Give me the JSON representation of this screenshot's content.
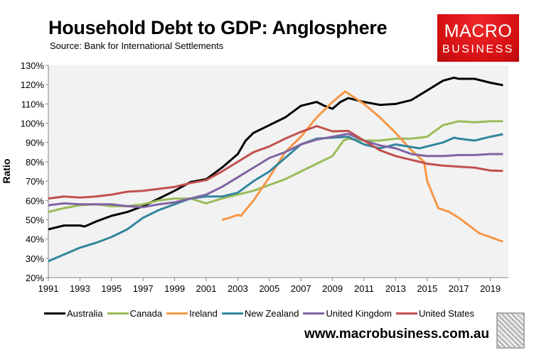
{
  "chart_data": {
    "type": "line",
    "title": "Household Debt to GDP: Anglosphere",
    "subtitle": "Source: Bank for International Settlements",
    "xlabel": "",
    "ylabel": "Ratio",
    "xlim": [
      1991,
      2020.1
    ],
    "ylim": [
      20,
      130
    ],
    "x_ticks": [
      "1991",
      "1993",
      "1995",
      "1997",
      "1999",
      "2001",
      "2003",
      "2005",
      "2007",
      "2009",
      "2011",
      "2013",
      "2015",
      "2017",
      "2019"
    ],
    "y_ticks": [
      "20%",
      "30%",
      "40%",
      "50%",
      "60%",
      "70%",
      "80%",
      "90%",
      "100%",
      "110%",
      "120%",
      "130%"
    ],
    "grid": false,
    "legend_position": "bottom",
    "series": [
      {
        "name": "Australia",
        "color": "#000000",
        "x": [
          1991,
          1992,
          1993,
          1993.3,
          1994,
          1995,
          1996,
          1997,
          1998,
          1999,
          2000,
          2001,
          2002,
          2003,
          2003.5,
          2004,
          2005,
          2006,
          2007,
          2008,
          2008.5,
          2009,
          2009.5,
          2010,
          2011,
          2012,
          2013,
          2014,
          2015,
          2016,
          2016.7,
          2017,
          2018,
          2019,
          2019.8
        ],
        "y": [
          45,
          47,
          47,
          46.5,
          49,
          52,
          54,
          57,
          61,
          65,
          69.5,
          71,
          77,
          84,
          91,
          95,
          99,
          103,
          109,
          111,
          109,
          107.5,
          111,
          113,
          111,
          109.5,
          110,
          112,
          117,
          122,
          123.6,
          123,
          123,
          121,
          119.7
        ]
      },
      {
        "name": "Canada",
        "color": "#9bbb59",
        "x": [
          1991,
          1992,
          1993,
          1994,
          1995,
          1996,
          1997,
          1998,
          1999,
          2000,
          2001,
          2002,
          2003,
          2004,
          2005,
          2006,
          2007,
          2008,
          2009,
          2009.7,
          2010,
          2011,
          2012,
          2013,
          2014,
          2015,
          2016,
          2017,
          2018,
          2019,
          2019.8
        ],
        "y": [
          54,
          56,
          57.5,
          58,
          57,
          57,
          58,
          60,
          61,
          61,
          58.5,
          61,
          63,
          65,
          68,
          71,
          75,
          79,
          83,
          91,
          92,
          91,
          91,
          92,
          92,
          93,
          99,
          101,
          100.5,
          101,
          101
        ]
      },
      {
        "name": "Ireland",
        "color": "#f79646",
        "x": [
          2002,
          2002.5,
          2003,
          2003.2,
          2004,
          2005,
          2006,
          2007,
          2008,
          2009,
          2009.8,
          2011,
          2012,
          2013,
          2014,
          2014.8,
          2015,
          2015.7,
          2016.4,
          2017,
          2018.3,
          2019,
          2019.8
        ],
        "y": [
          50,
          51,
          52.5,
          52,
          60,
          72,
          85,
          93,
          103,
          111,
          116.5,
          110,
          103,
          95,
          86,
          80,
          70,
          56,
          54,
          51,
          43,
          41,
          38.6
        ]
      },
      {
        "name": "New Zealand",
        "color": "#31859c",
        "x": [
          1991,
          1992,
          1993,
          1994,
          1995,
          1996,
          1997,
          1998,
          1999,
          2000,
          2001,
          2002,
          2003,
          2004,
          2005,
          2006,
          2007,
          2008,
          2009,
          2010,
          2011,
          2012,
          2013,
          2014.5,
          2015,
          2016,
          2016.7,
          2017,
          2018,
          2019,
          2019.8
        ],
        "y": [
          28.5,
          32,
          35.5,
          38,
          41,
          45,
          51,
          55,
          58,
          61,
          62,
          62,
          64,
          70,
          75,
          82,
          89,
          92,
          92.5,
          93,
          89,
          87,
          89,
          87,
          88,
          90,
          92.5,
          92,
          91,
          93,
          94.3
        ]
      },
      {
        "name": "United Kingdom",
        "color": "#8064a2",
        "x": [
          1991,
          1992,
          1993,
          1995,
          1996,
          1997,
          1998,
          1999,
          2000,
          2001,
          2002,
          2003,
          2004,
          2005,
          2006,
          2007,
          2008,
          2009,
          2010,
          2011,
          2012,
          2013,
          2014,
          2015,
          2016,
          2017,
          2018,
          2019,
          2019.8
        ],
        "y": [
          57.5,
          58.5,
          58,
          58,
          57,
          56.5,
          58,
          59,
          61,
          63,
          67,
          72,
          77,
          82,
          85,
          89,
          91.5,
          93,
          94.5,
          91,
          88.5,
          87,
          84,
          83,
          83,
          83.5,
          83.5,
          84,
          84
        ]
      },
      {
        "name": "United States",
        "color": "#c0504d",
        "x": [
          1991,
          1992,
          1993,
          1994,
          1995,
          1996,
          1997,
          1998,
          1999,
          2000,
          2001,
          2002,
          2003,
          2004,
          2005,
          2006,
          2007,
          2008,
          2009,
          2010,
          2011,
          2012,
          2013,
          2014,
          2015,
          2016,
          2017,
          2018,
          2019,
          2019.8
        ],
        "y": [
          61,
          62,
          61.5,
          62,
          63,
          64.5,
          65,
          66,
          67,
          69,
          70.5,
          75,
          80,
          85,
          88,
          92,
          95.5,
          98.5,
          95.8,
          96,
          91,
          86,
          83,
          81,
          79,
          78,
          77.5,
          77,
          75.5,
          75.3
        ]
      }
    ]
  },
  "branding": {
    "logo_line1": "MACRO",
    "logo_line2": "BUSINESS",
    "url": "www.macrobusiness.com.au"
  }
}
